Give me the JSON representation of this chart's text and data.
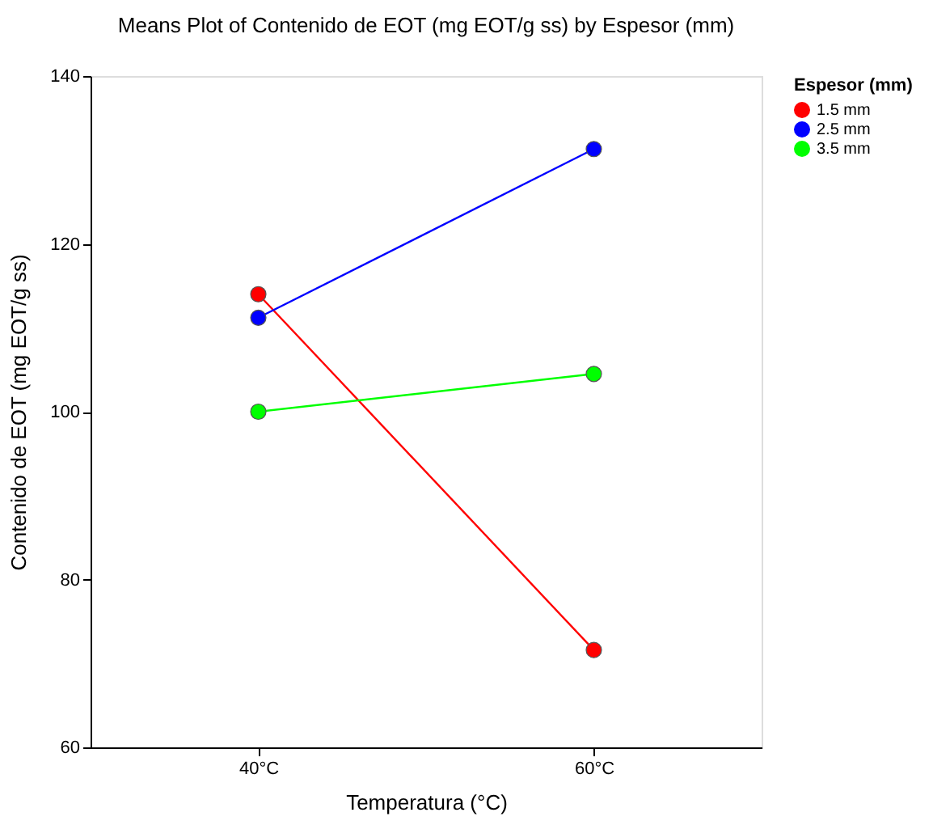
{
  "chart_data": {
    "type": "line",
    "title": "Means Plot of Contenido de EOT (mg EOT/g ss) by Espesor (mm)",
    "xlabel": "Temperatura (°C)",
    "ylabel": "Contenido de EOT (mg EOT/g ss)",
    "legend_title": "Espesor (mm)",
    "categories": [
      "40°C",
      "60°C"
    ],
    "series": [
      {
        "name": "1.5 mm",
        "color": "#ff0000",
        "values": [
          114.0,
          71.6
        ]
      },
      {
        "name": "2.5 mm",
        "color": "#0000ff",
        "values": [
          111.2,
          131.3
        ]
      },
      {
        "name": "3.5 mm",
        "color": "#00ff00",
        "values": [
          100.0,
          104.5
        ]
      }
    ],
    "ylim": [
      60,
      140
    ],
    "yticks": [
      60,
      80,
      100,
      120,
      140
    ],
    "grid": false,
    "legend": "right",
    "marker": "circle",
    "line_style": "solid"
  }
}
